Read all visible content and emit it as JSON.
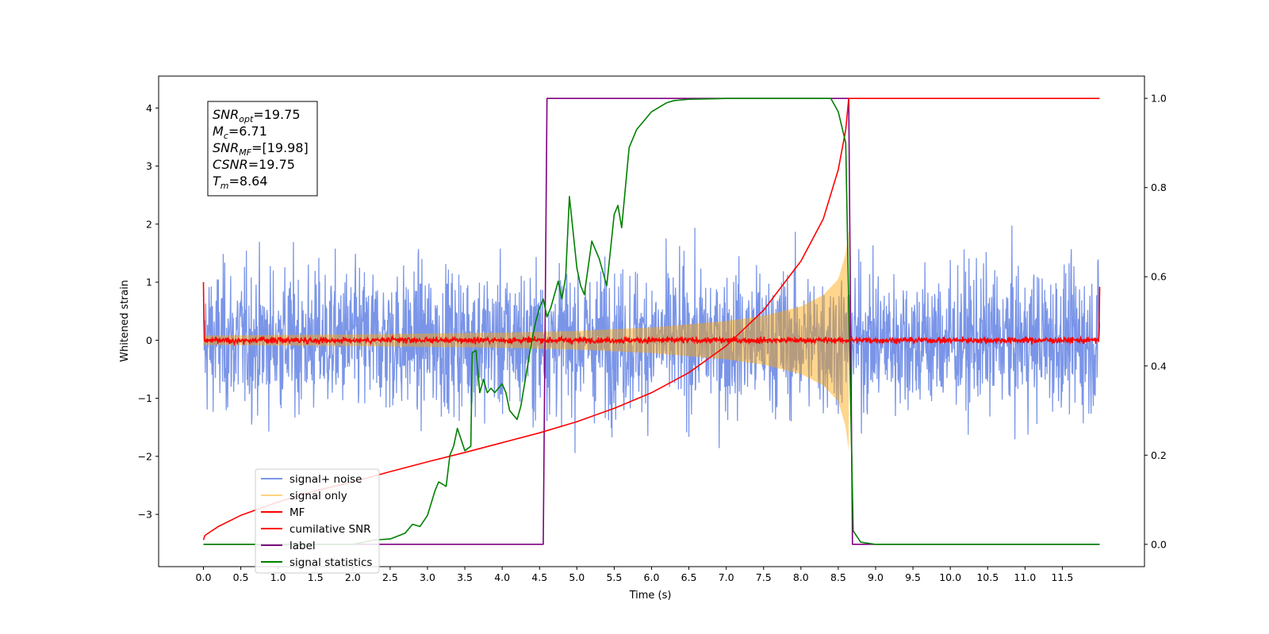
{
  "chart_data": {
    "type": "line",
    "title": "",
    "xlabel": "Time (s)",
    "ylabel": "Whitened strain",
    "y2label": "",
    "xlim": [
      -0.6,
      12.6
    ],
    "ylim": [
      -3.9,
      4.55
    ],
    "y2lim": [
      -0.05,
      1.05
    ],
    "x_ticks": [
      0.0,
      0.5,
      1.0,
      1.5,
      2.0,
      2.5,
      3.0,
      3.5,
      4.0,
      4.5,
      5.0,
      5.5,
      6.0,
      6.5,
      7.0,
      7.5,
      8.0,
      8.5,
      9.0,
      9.5,
      10.0,
      10.5,
      11.0,
      11.5
    ],
    "x_tick_labels": [
      "0.0",
      "0.5",
      "1.0",
      "1.5",
      "2.0",
      "2.5",
      "3.0",
      "3.5",
      "4.0",
      "4.5",
      "5.0",
      "5.5",
      "6.0",
      "6.5",
      "7.0",
      "7.5",
      "8.0",
      "8.5",
      "9.0",
      "9.5",
      "10.0",
      "10.5",
      "11.0",
      "11.5"
    ],
    "y_ticks": [
      -3,
      -2,
      -1,
      0,
      1,
      2,
      3,
      4
    ],
    "y_tick_labels": [
      "−3",
      "−2",
      "−1",
      "0",
      "1",
      "2",
      "3",
      "4"
    ],
    "y2_ticks": [
      0.0,
      0.2,
      0.4,
      0.6,
      0.8,
      1.0
    ],
    "y2_tick_labels": [
      "0.0",
      "0.2",
      "0.4",
      "0.6",
      "0.8",
      "1.0"
    ],
    "grid": false,
    "legend_position": "lower-left",
    "stats_box": {
      "lines": [
        {
          "main": "SNR",
          "sub": "opt",
          "value": "=19.75"
        },
        {
          "main": "M",
          "sub": "c",
          "value": "=6.71"
        },
        {
          "main": "SNR",
          "sub": "MF",
          "value": "=[19.98]"
        },
        {
          "main": "CSNR",
          "sub": "",
          "value": "=19.75"
        },
        {
          "main": "T",
          "sub": "m",
          "value": "=8.64"
        }
      ]
    },
    "series": [
      {
        "name": "signal+ noise",
        "axis": "left",
        "color": "#6b8ae6",
        "kind": "noise-band",
        "x_range": [
          0.0,
          12.0
        ],
        "typical_amplitude": 1.4,
        "max_amplitude": 3.4
      },
      {
        "name": "signal only",
        "axis": "left",
        "color": "#ffa500",
        "kind": "chirp-envelope",
        "x_range": [
          0.0,
          8.64
        ],
        "envelope": [
          {
            "x": 0.0,
            "amp": 0.08
          },
          {
            "x": 2.0,
            "amp": 0.1
          },
          {
            "x": 4.0,
            "amp": 0.13
          },
          {
            "x": 5.0,
            "amp": 0.16
          },
          {
            "x": 6.0,
            "amp": 0.22
          },
          {
            "x": 7.0,
            "amp": 0.33
          },
          {
            "x": 7.5,
            "amp": 0.42
          },
          {
            "x": 8.0,
            "amp": 0.58
          },
          {
            "x": 8.3,
            "amp": 0.78
          },
          {
            "x": 8.5,
            "amp": 1.05
          },
          {
            "x": 8.6,
            "amp": 1.5
          },
          {
            "x": 8.64,
            "amp": 1.9
          }
        ]
      },
      {
        "name": "MF",
        "axis": "left",
        "color": "#ff0000",
        "kind": "noise-trace",
        "x_range": [
          0.0,
          12.0
        ],
        "edge_values": {
          "start": 1.0,
          "end": 0.92
        },
        "typical_amplitude": 0.05
      },
      {
        "name": "cumilative SNR",
        "axis": "right",
        "color": "#ff0000",
        "kind": "line",
        "x": [
          0.0,
          0.02,
          0.2,
          0.5,
          1.0,
          1.5,
          2.0,
          2.5,
          3.0,
          3.5,
          4.0,
          4.5,
          5.0,
          5.5,
          6.0,
          6.5,
          7.0,
          7.5,
          8.0,
          8.3,
          8.5,
          8.6,
          8.64,
          12.0
        ],
        "y": [
          0.01,
          0.02,
          0.04,
          0.065,
          0.095,
          0.12,
          0.14,
          0.163,
          0.185,
          0.206,
          0.228,
          0.25,
          0.275,
          0.305,
          0.34,
          0.385,
          0.445,
          0.525,
          0.635,
          0.73,
          0.84,
          0.93,
          1.0,
          1.0
        ]
      },
      {
        "name": "label",
        "axis": "right",
        "color": "#800080",
        "kind": "line",
        "x": [
          0.0,
          4.55,
          4.6,
          8.64,
          8.69,
          12.0
        ],
        "y": [
          0.0,
          0.0,
          1.0,
          1.0,
          0.0,
          0.0
        ]
      },
      {
        "name": "signal statistics",
        "axis": "right",
        "color": "#008000",
        "kind": "line",
        "x": [
          0.0,
          1.0,
          2.0,
          2.3,
          2.5,
          2.7,
          2.8,
          2.9,
          3.0,
          3.1,
          3.15,
          3.25,
          3.3,
          3.35,
          3.4,
          3.5,
          3.58,
          3.6,
          3.65,
          3.7,
          3.75,
          3.8,
          3.85,
          3.9,
          4.0,
          4.05,
          4.1,
          4.2,
          4.25,
          4.3,
          4.35,
          4.4,
          4.45,
          4.5,
          4.55,
          4.6,
          4.65,
          4.7,
          4.75,
          4.8,
          4.85,
          4.9,
          5.0,
          5.05,
          5.1,
          5.2,
          5.3,
          5.4,
          5.5,
          5.55,
          5.6,
          5.7,
          5.8,
          5.9,
          6.0,
          6.1,
          6.2,
          6.3,
          6.5,
          6.8,
          7.0,
          7.5,
          8.0,
          8.4,
          8.5,
          8.6,
          8.65,
          8.7,
          8.8,
          9.0,
          12.0
        ],
        "y": [
          0.0,
          0.0,
          0.0,
          0.01,
          0.012,
          0.025,
          0.045,
          0.04,
          0.065,
          0.12,
          0.14,
          0.13,
          0.2,
          0.22,
          0.26,
          0.21,
          0.22,
          0.43,
          0.435,
          0.34,
          0.37,
          0.34,
          0.35,
          0.34,
          0.36,
          0.34,
          0.3,
          0.28,
          0.31,
          0.36,
          0.41,
          0.46,
          0.5,
          0.53,
          0.55,
          0.51,
          0.53,
          0.56,
          0.59,
          0.55,
          0.6,
          0.78,
          0.62,
          0.58,
          0.56,
          0.68,
          0.64,
          0.58,
          0.74,
          0.76,
          0.71,
          0.89,
          0.93,
          0.95,
          0.97,
          0.98,
          0.99,
          0.995,
          0.998,
          0.999,
          1.0,
          1.0,
          1.0,
          1.0,
          0.97,
          0.9,
          0.45,
          0.03,
          0.005,
          0.0,
          0.0
        ]
      }
    ]
  }
}
